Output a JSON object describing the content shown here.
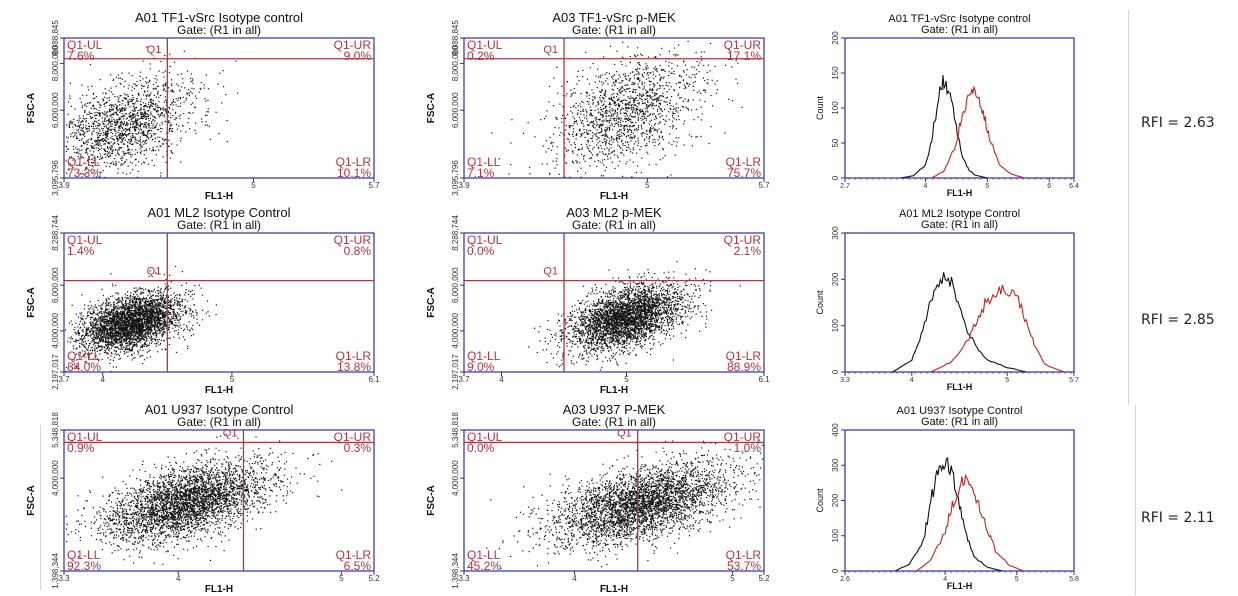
{
  "colors": {
    "axis": "#2e2ea8",
    "gate": "#b83240",
    "dots": "#111111",
    "control": "#111111",
    "stained": "#cc2222"
  },
  "rows": [
    {
      "rfi": "RFI = 2.63",
      "scatter": [
        {
          "title": "A01 TF1-vSrc Isotype control",
          "gate": "Gate: (R1 in all)",
          "xlabel": "FL1-H",
          "ylabel": "FSC-A",
          "x_ticks": [
            "3.9",
            "5",
            "5.7"
          ],
          "y_ticks": [
            "3,095,796",
            "6,000,000",
            "8,000,000",
            "9,088,845"
          ],
          "gate_label": "Q1",
          "quadrants": {
            "UL": {
              "label": "Q1-UL",
              "value": "7.6%"
            },
            "UR": {
              "label": "Q1-UR",
              "value": "9.0%"
            },
            "LL": {
              "label": "Q1-LL",
              "value": "73.3%"
            },
            "LR": {
              "label": "Q1-LR",
              "value": "10.1%"
            }
          }
        },
        {
          "title": "A03 TF1-vSrc p-MEK",
          "gate": "Gate: (R1 in all)",
          "xlabel": "FL1-H",
          "ylabel": "FSC-A",
          "x_ticks": [
            "3.9",
            "5",
            "5.7"
          ],
          "y_ticks": [
            "3,095,796",
            "6,000,000",
            "8,000,000",
            "9,088,845"
          ],
          "gate_label": "Q1",
          "quadrants": {
            "UL": {
              "label": "Q1-UL",
              "value": "0.2%"
            },
            "UR": {
              "label": "Q1-UR",
              "value": "17.1%"
            },
            "LL": {
              "label": "Q1-LL",
              "value": "7.1%"
            },
            "LR": {
              "label": "Q1-LR",
              "value": "75.7%"
            }
          }
        }
      ],
      "histogram": {
        "title": "A01 TF1-vSrc Isotype control",
        "gate": "Gate: (R1 in all)",
        "xlabel": "FL1-H",
        "ylabel": "Count",
        "y_ticks": [
          "0",
          "50",
          "100",
          "150",
          "200"
        ],
        "x_ticks": [
          "2.7",
          "4",
          "5",
          "6",
          "6.4"
        ]
      }
    },
    {
      "rfi": "RFI = 2.85",
      "scatter": [
        {
          "title": "A01 ML2 Isotype Control",
          "gate": "Gate: (R1 in all)",
          "xlabel": "FL1-H",
          "ylabel": "FSC-A",
          "x_ticks": [
            "3.7",
            "4",
            "5",
            "6.1"
          ],
          "y_ticks": [
            "2,197,017",
            "4,000,000",
            "6,000,000",
            "8,288,744"
          ],
          "gate_label": "Q1",
          "quadrants": {
            "UL": {
              "label": "Q1-UL",
              "value": "1.4%"
            },
            "UR": {
              "label": "Q1-UR",
              "value": "0.8%"
            },
            "LL": {
              "label": "Q1-LL",
              "value": "84.0%"
            },
            "LR": {
              "label": "Q1-LR",
              "value": "13.8%"
            }
          }
        },
        {
          "title": "A03 ML2 p-MEK",
          "gate": "Gate: (R1 in all)",
          "xlabel": "FL1-H",
          "ylabel": "FSC-A",
          "x_ticks": [
            "3.7",
            "4",
            "5",
            "6.1"
          ],
          "y_ticks": [
            "2,197,017",
            "4,000,000",
            "6,000,000",
            "8,288,744"
          ],
          "gate_label": "Q1",
          "quadrants": {
            "UL": {
              "label": "Q1-UL",
              "value": "0.0%"
            },
            "UR": {
              "label": "Q1-UR",
              "value": "2.1%"
            },
            "LL": {
              "label": "Q1-LL",
              "value": "9.0%"
            },
            "LR": {
              "label": "Q1-LR",
              "value": "88.9%"
            }
          }
        }
      ],
      "histogram": {
        "title": "A01 ML2 Isotype Control",
        "gate": "Gate: (R1 in all)",
        "xlabel": "FL1-H",
        "ylabel": "Count",
        "y_ticks": [
          "0",
          "100",
          "200",
          "300"
        ],
        "x_ticks": [
          "3.3",
          "4",
          "5",
          "5.7"
        ]
      }
    },
    {
      "rfi": "RFI = 2.11",
      "scatter": [
        {
          "title": "A01 U937 Isotype Control",
          "gate": "Gate: (R1 in all)",
          "xlabel": "FL1-H",
          "ylabel": "FSC-A",
          "x_ticks": [
            "3.3",
            "4",
            "5",
            "5.2"
          ],
          "y_ticks": [
            "1,398,344",
            "4,000,000",
            "5,348,818"
          ],
          "gate_label": "Q1",
          "quadrants": {
            "UL": {
              "label": "Q1-UL",
              "value": "0.9%"
            },
            "UR": {
              "label": "Q1-UR",
              "value": "0.3%"
            },
            "LL": {
              "label": "Q1-LL",
              "value": "92.3%"
            },
            "LR": {
              "label": "Q1-LR",
              "value": "6.5%"
            }
          }
        },
        {
          "title": "A03 U937 P-MEK",
          "gate": "Gate: (R1 in all)",
          "xlabel": "FL1-H",
          "ylabel": "FSC-A",
          "x_ticks": [
            "3.3",
            "4",
            "5",
            "5.2"
          ],
          "y_ticks": [
            "1,398,344",
            "4,000,000",
            "5,348,818"
          ],
          "gate_label": "Q1",
          "quadrants": {
            "UL": {
              "label": "Q1-UL",
              "value": "0.0%"
            },
            "UR": {
              "label": "Q1-UR",
              "value": "1.0%"
            },
            "LL": {
              "label": "Q1-LL",
              "value": "45.2%"
            },
            "LR": {
              "label": "Q1-LR",
              "value": "53.7%"
            }
          }
        }
      ],
      "histogram": {
        "title": "A01 U937 Isotype Control",
        "gate": "Gate: (R1 in all)",
        "xlabel": "FL1-H",
        "ylabel": "Count",
        "y_ticks": [
          "0",
          "100",
          "200",
          "300",
          "400"
        ],
        "x_ticks": [
          "2.6",
          "4",
          "5",
          "5.8"
        ]
      }
    }
  ],
  "chart_data": [
    {
      "type": "scatter",
      "title": "A01 TF1-vSrc Isotype control",
      "xlabel": "FL1-H",
      "ylabel": "FSC-A",
      "xlim": [
        3.9,
        5.7
      ],
      "ylim": [
        3095796,
        9088845
      ],
      "gate": {
        "x": 4.5,
        "y": 8200000
      },
      "cloud": {
        "center": [
          4.25,
          5400000
        ],
        "spread": [
          0.17,
          900000
        ],
        "points": 1600
      },
      "quadrant_percent": {
        "UL": 7.6,
        "UR": 9.0,
        "LL": 73.3,
        "LR": 10.1
      }
    },
    {
      "type": "scatter",
      "title": "A03 TF1-vSrc p-MEK",
      "xlabel": "FL1-H",
      "ylabel": "FSC-A",
      "xlim": [
        3.9,
        5.7
      ],
      "ylim": [
        3095796,
        9088845
      ],
      "gate": {
        "x": 4.5,
        "y": 8200000
      },
      "cloud": {
        "center": [
          4.88,
          6000000
        ],
        "spread": [
          0.19,
          1100000
        ],
        "points": 1500
      },
      "quadrant_percent": {
        "UL": 0.2,
        "UR": 17.1,
        "LL": 7.1,
        "LR": 75.7
      }
    },
    {
      "type": "scatter",
      "title": "A01 ML2 Isotype Control",
      "xlabel": "FL1-H",
      "ylabel": "FSC-A",
      "xlim": [
        3.7,
        6.1
      ],
      "ylim": [
        2197017,
        8288744
      ],
      "gate": {
        "x": 4.5,
        "y": 6200000
      },
      "cloud": {
        "center": [
          4.22,
          4400000
        ],
        "spread": [
          0.17,
          600000
        ],
        "points": 3500
      },
      "quadrant_percent": {
        "UL": 1.4,
        "UR": 0.8,
        "LL": 84.0,
        "LR": 13.8
      }
    },
    {
      "type": "scatter",
      "title": "A03 ML2 p-MEK",
      "xlabel": "FL1-H",
      "ylabel": "FSC-A",
      "xlim": [
        3.7,
        6.1
      ],
      "ylim": [
        2197017,
        8288744
      ],
      "gate": {
        "x": 4.5,
        "y": 6200000
      },
      "cloud": {
        "center": [
          5.0,
          4600000
        ],
        "spread": [
          0.2,
          650000
        ],
        "points": 3500
      },
      "quadrant_percent": {
        "UL": 0.0,
        "UR": 2.1,
        "LL": 9.0,
        "LR": 88.9
      }
    },
    {
      "type": "scatter",
      "title": "A01 U937 Isotype Control",
      "xlabel": "FL1-H",
      "ylabel": "FSC-A",
      "xlim": [
        3.3,
        5.2
      ],
      "ylim": [
        1398344,
        5348818
      ],
      "gate": {
        "x": 4.4,
        "y": 5000000
      },
      "cloud": {
        "center": [
          4.05,
          3350000
        ],
        "spread": [
          0.22,
          480000
        ],
        "points": 3600
      },
      "quadrant_percent": {
        "UL": 0.9,
        "UR": 0.3,
        "LL": 92.3,
        "LR": 6.5
      }
    },
    {
      "type": "scatter",
      "title": "A03 U937 P-MEK",
      "xlabel": "FL1-H",
      "ylabel": "FSC-A",
      "xlim": [
        3.3,
        5.2
      ],
      "ylim": [
        1398344,
        5348818
      ],
      "gate": {
        "x": 4.4,
        "y": 5000000
      },
      "cloud": {
        "center": [
          4.42,
          3300000
        ],
        "spread": [
          0.24,
          480000
        ],
        "points": 3600
      },
      "quadrant_percent": {
        "UL": 0.0,
        "UR": 1.0,
        "LL": 45.2,
        "LR": 53.7
      }
    },
    {
      "type": "line",
      "title": "A01 TF1-vSrc Isotype control",
      "xlabel": "FL1-H",
      "ylabel": "Count",
      "xlim": [
        2.7,
        6.4
      ],
      "ylim": [
        0,
        200
      ],
      "series": [
        {
          "x": [
            3.6,
            3.8,
            4.0,
            4.1,
            4.2,
            4.3,
            4.4,
            4.5,
            4.6,
            4.7,
            4.8,
            5.0
          ],
          "values": [
            0,
            3,
            18,
            55,
            110,
            140,
            120,
            70,
            30,
            12,
            4,
            0
          ]
        },
        {
          "x": [
            4.1,
            4.3,
            4.5,
            4.6,
            4.7,
            4.8,
            4.9,
            5.0,
            5.1,
            5.2,
            5.4,
            5.6
          ],
          "values": [
            0,
            10,
            50,
            95,
            118,
            125,
            105,
            70,
            40,
            18,
            5,
            0
          ]
        }
      ]
    },
    {
      "type": "line",
      "title": "A01 ML2 Isotype Control",
      "xlabel": "FL1-H",
      "ylabel": "Count",
      "xlim": [
        3.3,
        5.7
      ],
      "ylim": [
        0,
        300
      ],
      "series": [
        {
          "x": [
            3.8,
            4.0,
            4.1,
            4.2,
            4.3,
            4.4,
            4.5,
            4.6,
            4.7,
            4.8,
            5.0,
            5.2
          ],
          "values": [
            0,
            25,
            80,
            160,
            210,
            200,
            140,
            80,
            50,
            25,
            10,
            0
          ]
        },
        {
          "x": [
            4.2,
            4.4,
            4.6,
            4.7,
            4.8,
            4.9,
            5.0,
            5.1,
            5.2,
            5.3,
            5.4,
            5.6
          ],
          "values": [
            0,
            20,
            70,
            120,
            160,
            170,
            175,
            160,
            110,
            50,
            15,
            0
          ]
        }
      ]
    },
    {
      "type": "line",
      "title": "A01 U937 Isotype Control",
      "xlabel": "FL1-H",
      "ylabel": "Count",
      "xlim": [
        2.6,
        5.8
      ],
      "ylim": [
        0,
        400
      ],
      "series": [
        {
          "x": [
            3.3,
            3.5,
            3.7,
            3.8,
            3.9,
            4.0,
            4.1,
            4.2,
            4.3,
            4.4,
            4.6,
            4.8
          ],
          "values": [
            0,
            20,
            90,
            200,
            290,
            320,
            280,
            190,
            100,
            40,
            10,
            0
          ]
        },
        {
          "x": [
            3.6,
            3.8,
            4.0,
            4.1,
            4.2,
            4.3,
            4.4,
            4.5,
            4.6,
            4.7,
            4.9,
            5.1
          ],
          "values": [
            0,
            30,
            110,
            190,
            240,
            260,
            230,
            170,
            110,
            60,
            15,
            0
          ]
        }
      ]
    }
  ]
}
